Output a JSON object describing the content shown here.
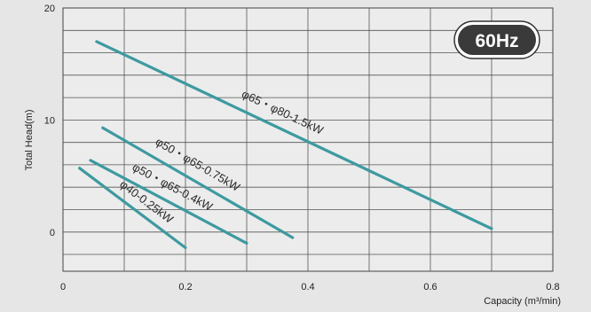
{
  "chart_data": {
    "type": "line",
    "xlabel": "Capacity (m³/min)",
    "ylabel": "Total Head(m)",
    "badge": "60Hz",
    "xlim": [
      0,
      0.8
    ],
    "ylim": [
      -3.5,
      20
    ],
    "x_ticks": [
      0,
      0.2,
      0.4,
      0.6,
      0.8
    ],
    "y_ticks": [
      0,
      10,
      20
    ],
    "x_grid_step": 0.1,
    "y_grid_step": 2,
    "grid": true,
    "line_color": "#3d9aa0",
    "series": [
      {
        "name": "φ65・φ80-1.5kW",
        "x": [
          0.055,
          0.7
        ],
        "y": [
          17.0,
          0.3
        ]
      },
      {
        "name": "φ50・φ65-0.75kW",
        "x": [
          0.065,
          0.375
        ],
        "y": [
          9.3,
          -0.5
        ]
      },
      {
        "name": "φ50・φ65-0.4kW",
        "x": [
          0.045,
          0.3
        ],
        "y": [
          6.4,
          -1.0
        ]
      },
      {
        "name": "φ40-0.25kW",
        "x": [
          0.027,
          0.2
        ],
        "y": [
          5.7,
          -1.4
        ]
      }
    ]
  }
}
